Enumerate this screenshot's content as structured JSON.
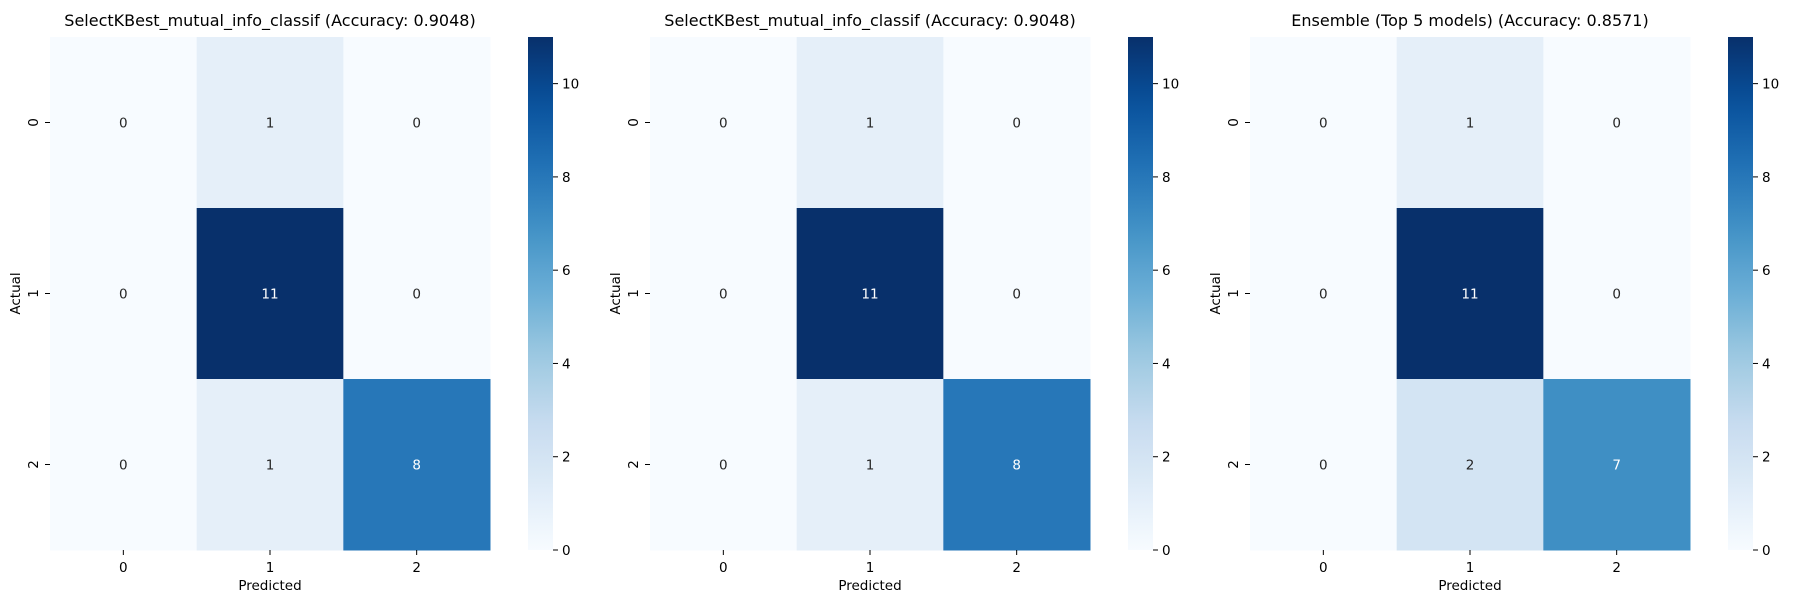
{
  "chart_data": [
    {
      "type": "heatmap",
      "title": "SelectKBest_mutual_info_classif (Accuracy: 0.9048)",
      "xlabel": "Predicted",
      "ylabel": "Actual",
      "x_categories": [
        "0",
        "1",
        "2"
      ],
      "y_categories": [
        "0",
        "1",
        "2"
      ],
      "matrix": [
        [
          0,
          1,
          0
        ],
        [
          0,
          11,
          0
        ],
        [
          0,
          1,
          8
        ]
      ],
      "colorbar": {
        "min": 0,
        "max": 11,
        "ticks": [
          0,
          2,
          4,
          6,
          8,
          10
        ]
      },
      "colormap": "Blues"
    },
    {
      "type": "heatmap",
      "title": "SelectKBest_mutual_info_classif (Accuracy: 0.9048)",
      "xlabel": "Predicted",
      "ylabel": "Actual",
      "x_categories": [
        "0",
        "1",
        "2"
      ],
      "y_categories": [
        "0",
        "1",
        "2"
      ],
      "matrix": [
        [
          0,
          1,
          0
        ],
        [
          0,
          11,
          0
        ],
        [
          0,
          1,
          8
        ]
      ],
      "colorbar": {
        "min": 0,
        "max": 11,
        "ticks": [
          0,
          2,
          4,
          6,
          8,
          10
        ]
      },
      "colormap": "Blues"
    },
    {
      "type": "heatmap",
      "title": "Ensemble (Top 5 models) (Accuracy: 0.8571)",
      "xlabel": "Predicted",
      "ylabel": "Actual",
      "x_categories": [
        "0",
        "1",
        "2"
      ],
      "y_categories": [
        "0",
        "1",
        "2"
      ],
      "matrix": [
        [
          0,
          1,
          0
        ],
        [
          0,
          11,
          0
        ],
        [
          0,
          2,
          7
        ]
      ],
      "colorbar": {
        "min": 0,
        "max": 11,
        "ticks": [
          0,
          2,
          4,
          6,
          8,
          10
        ]
      },
      "colormap": "Blues"
    }
  ]
}
